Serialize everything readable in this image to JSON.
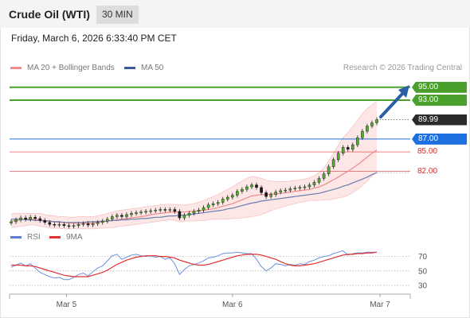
{
  "header": {
    "title": "Crude Oil (WTI)",
    "interval": "30 MIN"
  },
  "datetime": "Friday, March 6, 2026 6:33:40 PM CET",
  "legend": {
    "ma20": {
      "label": "MA 20 + Bollinger Bands",
      "color": "#f28b8b"
    },
    "ma50": {
      "label": "MA 50",
      "color": "#3a5a9c"
    },
    "attribution": "Research © 2026 Trading Central",
    "rsi": {
      "label": "RSI",
      "color": "#5b7fd6"
    },
    "rsi_ma": {
      "label": "9MA",
      "color": "#e03030"
    }
  },
  "levels": [
    {
      "value": 95.0,
      "label": "95.00",
      "kind": "target",
      "color": "#4aa02c"
    },
    {
      "value": 93.0,
      "label": "93.00",
      "kind": "target",
      "color": "#4aa02c"
    },
    {
      "value": 87.0,
      "label": "87.00",
      "kind": "pivot",
      "color": "#1e6fe0"
    },
    {
      "value": 85.0,
      "label": "85.00",
      "kind": "support",
      "color": "#e05050"
    },
    {
      "value": 82.0,
      "label": "82.00",
      "kind": "support",
      "color": "#e05050"
    }
  ],
  "last_price": {
    "value": 89.99,
    "label": "89.99"
  },
  "chart_data": {
    "type": "candlestick",
    "x_ticks": [
      "Mar 5",
      "Mar 6",
      "Mar 7"
    ],
    "price_ylim": [
      75.3,
      95.4
    ],
    "closes": [
      74.2,
      74.5,
      74.8,
      74.6,
      74.9,
      74.7,
      74.4,
      74.1,
      73.8,
      73.7,
      73.8,
      73.6,
      73.5,
      73.6,
      73.8,
      73.9,
      73.7,
      73.9,
      74.1,
      74.3,
      74.6,
      75.0,
      75.2,
      75.0,
      75.3,
      75.5,
      75.6,
      75.7,
      75.8,
      75.9,
      76.0,
      76.1,
      76.0,
      76.1,
      75.8,
      74.8,
      75.2,
      75.5,
      75.8,
      76.0,
      76.4,
      76.8,
      77.0,
      77.2,
      77.7,
      78.0,
      78.3,
      78.9,
      79.2,
      79.6,
      79.9,
      79.5,
      78.7,
      78.1,
      78.4,
      78.8,
      79.0,
      79.1,
      79.3,
      79.4,
      79.5,
      79.6,
      79.9,
      80.3,
      80.9,
      81.6,
      82.7,
      83.8,
      84.8,
      85.7,
      85.4,
      86.1,
      87.2,
      88.2,
      89.0,
      89.5,
      89.99
    ],
    "ma20": [
      74.3,
      74.4,
      74.5,
      74.6,
      74.6,
      74.6,
      74.5,
      74.4,
      74.3,
      74.2,
      74.1,
      74.1,
      74.0,
      74.0,
      74.0,
      74.0,
      74.0,
      74.0,
      74.1,
      74.2,
      74.3,
      74.4,
      74.5,
      74.6,
      74.7,
      74.8,
      74.9,
      75.0,
      75.1,
      75.3,
      75.4,
      75.5,
      75.6,
      75.7,
      75.7,
      75.7,
      75.7,
      75.8,
      75.8,
      75.9,
      76.0,
      76.1,
      76.2,
      76.4,
      76.6,
      76.8,
      77.0,
      77.3,
      77.6,
      77.9,
      78.2,
      78.3,
      78.4,
      78.4,
      78.5,
      78.5,
      78.6,
      78.7,
      78.8,
      78.9,
      79.0,
      79.1,
      79.2,
      79.4,
      79.6,
      79.9,
      80.3,
      80.7,
      81.1,
      81.6,
      82.0,
      82.5,
      83.0,
      83.6,
      84.2,
      84.8,
      85.3
    ],
    "ma50": [
      74.6,
      74.6,
      74.6,
      74.5,
      74.5,
      74.4,
      74.4,
      74.3,
      74.3,
      74.2,
      74.2,
      74.1,
      74.1,
      74.1,
      74.1,
      74.1,
      74.2,
      74.2,
      74.2,
      74.3,
      74.3,
      74.4,
      74.4,
      74.5,
      74.5,
      74.6,
      74.6,
      74.7,
      74.7,
      74.8,
      74.9,
      74.9,
      75.0,
      75.1,
      75.1,
      75.2,
      75.2,
      75.3,
      75.4,
      75.5,
      75.6,
      75.7,
      75.8,
      75.9,
      76.0,
      76.2,
      76.3,
      76.5,
      76.7,
      76.9,
      77.1,
      77.2,
      77.4,
      77.5,
      77.6,
      77.7,
      77.8,
      77.9,
      78.0,
      78.1,
      78.2,
      78.3,
      78.4,
      78.5,
      78.6,
      78.8,
      79.0,
      79.2,
      79.4,
      79.7,
      79.9,
      80.2,
      80.5,
      80.8,
      81.1,
      81.5,
      81.8
    ],
    "bb_upper": [
      75.4,
      75.5,
      75.5,
      75.5,
      75.5,
      75.5,
      75.5,
      75.3,
      75.2,
      75.1,
      75.0,
      75.0,
      74.9,
      74.9,
      75.0,
      75.0,
      75.0,
      75.0,
      75.1,
      75.3,
      75.5,
      75.7,
      75.9,
      76.0,
      76.1,
      76.2,
      76.3,
      76.4,
      76.5,
      76.6,
      76.7,
      76.8,
      76.9,
      76.9,
      76.9,
      76.8,
      76.8,
      76.9,
      77.0,
      77.2,
      77.5,
      77.8,
      78.1,
      78.4,
      78.8,
      79.2,
      79.6,
      80.1,
      80.5,
      80.9,
      81.2,
      81.1,
      80.9,
      80.6,
      80.5,
      80.4,
      80.4,
      80.4,
      80.5,
      80.6,
      80.7,
      80.8,
      81.0,
      81.3,
      81.8,
      82.5,
      83.6,
      84.8,
      86.0,
      87.2,
      88.0,
      88.9,
      89.9,
      90.9,
      91.7,
      92.3,
      92.8
    ],
    "bb_lower": [
      73.3,
      73.4,
      73.5,
      73.6,
      73.7,
      73.7,
      73.5,
      73.4,
      73.3,
      73.2,
      73.2,
      73.1,
      73.1,
      73.1,
      73.1,
      73.1,
      73.1,
      73.1,
      73.2,
      73.2,
      73.3,
      73.3,
      73.4,
      73.5,
      73.6,
      73.7,
      73.8,
      73.9,
      74.0,
      74.1,
      74.2,
      74.3,
      74.4,
      74.5,
      74.4,
      74.2,
      74.3,
      74.3,
      74.3,
      74.4,
      74.4,
      74.5,
      74.6,
      74.6,
      74.6,
      74.6,
      74.7,
      74.7,
      74.8,
      74.9,
      75.0,
      75.1,
      75.3,
      75.6,
      75.9,
      76.2,
      76.4,
      76.6,
      76.8,
      77.0,
      77.2,
      77.3,
      77.5,
      77.5,
      77.5,
      77.6,
      77.6,
      77.7,
      77.9,
      78.0,
      78.3,
      78.7,
      79.2,
      79.8,
      80.5,
      81.3,
      81.8
    ],
    "rsi": {
      "ylim": [
        20,
        85
      ],
      "ticks": [
        70,
        50,
        30
      ],
      "rsi": [
        55,
        58,
        61,
        57,
        60,
        54,
        48,
        45,
        42,
        40,
        41,
        38,
        38,
        41,
        45,
        47,
        43,
        49,
        54,
        57,
        64,
        71,
        73,
        66,
        69,
        72,
        73,
        71,
        70,
        71,
        69,
        70,
        66,
        68,
        60,
        45,
        52,
        57,
        59,
        61,
        64,
        68,
        69,
        71,
        74,
        75,
        75,
        76,
        75,
        74,
        74,
        66,
        56,
        50,
        54,
        60,
        59,
        57,
        59,
        58,
        60,
        59,
        63,
        65,
        68,
        70,
        71,
        74,
        76,
        78,
        72,
        74,
        75,
        75,
        76,
        76,
        76
      ],
      "ma": [
        58,
        58,
        58,
        57,
        57,
        56,
        54,
        52,
        50,
        48,
        46,
        44,
        43,
        42,
        42,
        42,
        42,
        44,
        46,
        48,
        51,
        55,
        59,
        62,
        65,
        67,
        69,
        70,
        71,
        71,
        71,
        70,
        70,
        69,
        68,
        65,
        63,
        61,
        59,
        58,
        58,
        59,
        61,
        63,
        65,
        67,
        69,
        71,
        72,
        73,
        73,
        73,
        72,
        70,
        68,
        66,
        63,
        60,
        58,
        57,
        57,
        58,
        59,
        60,
        62,
        64,
        66,
        68,
        70,
        72,
        73,
        73,
        74,
        74,
        75,
        75,
        76
      ]
    }
  }
}
